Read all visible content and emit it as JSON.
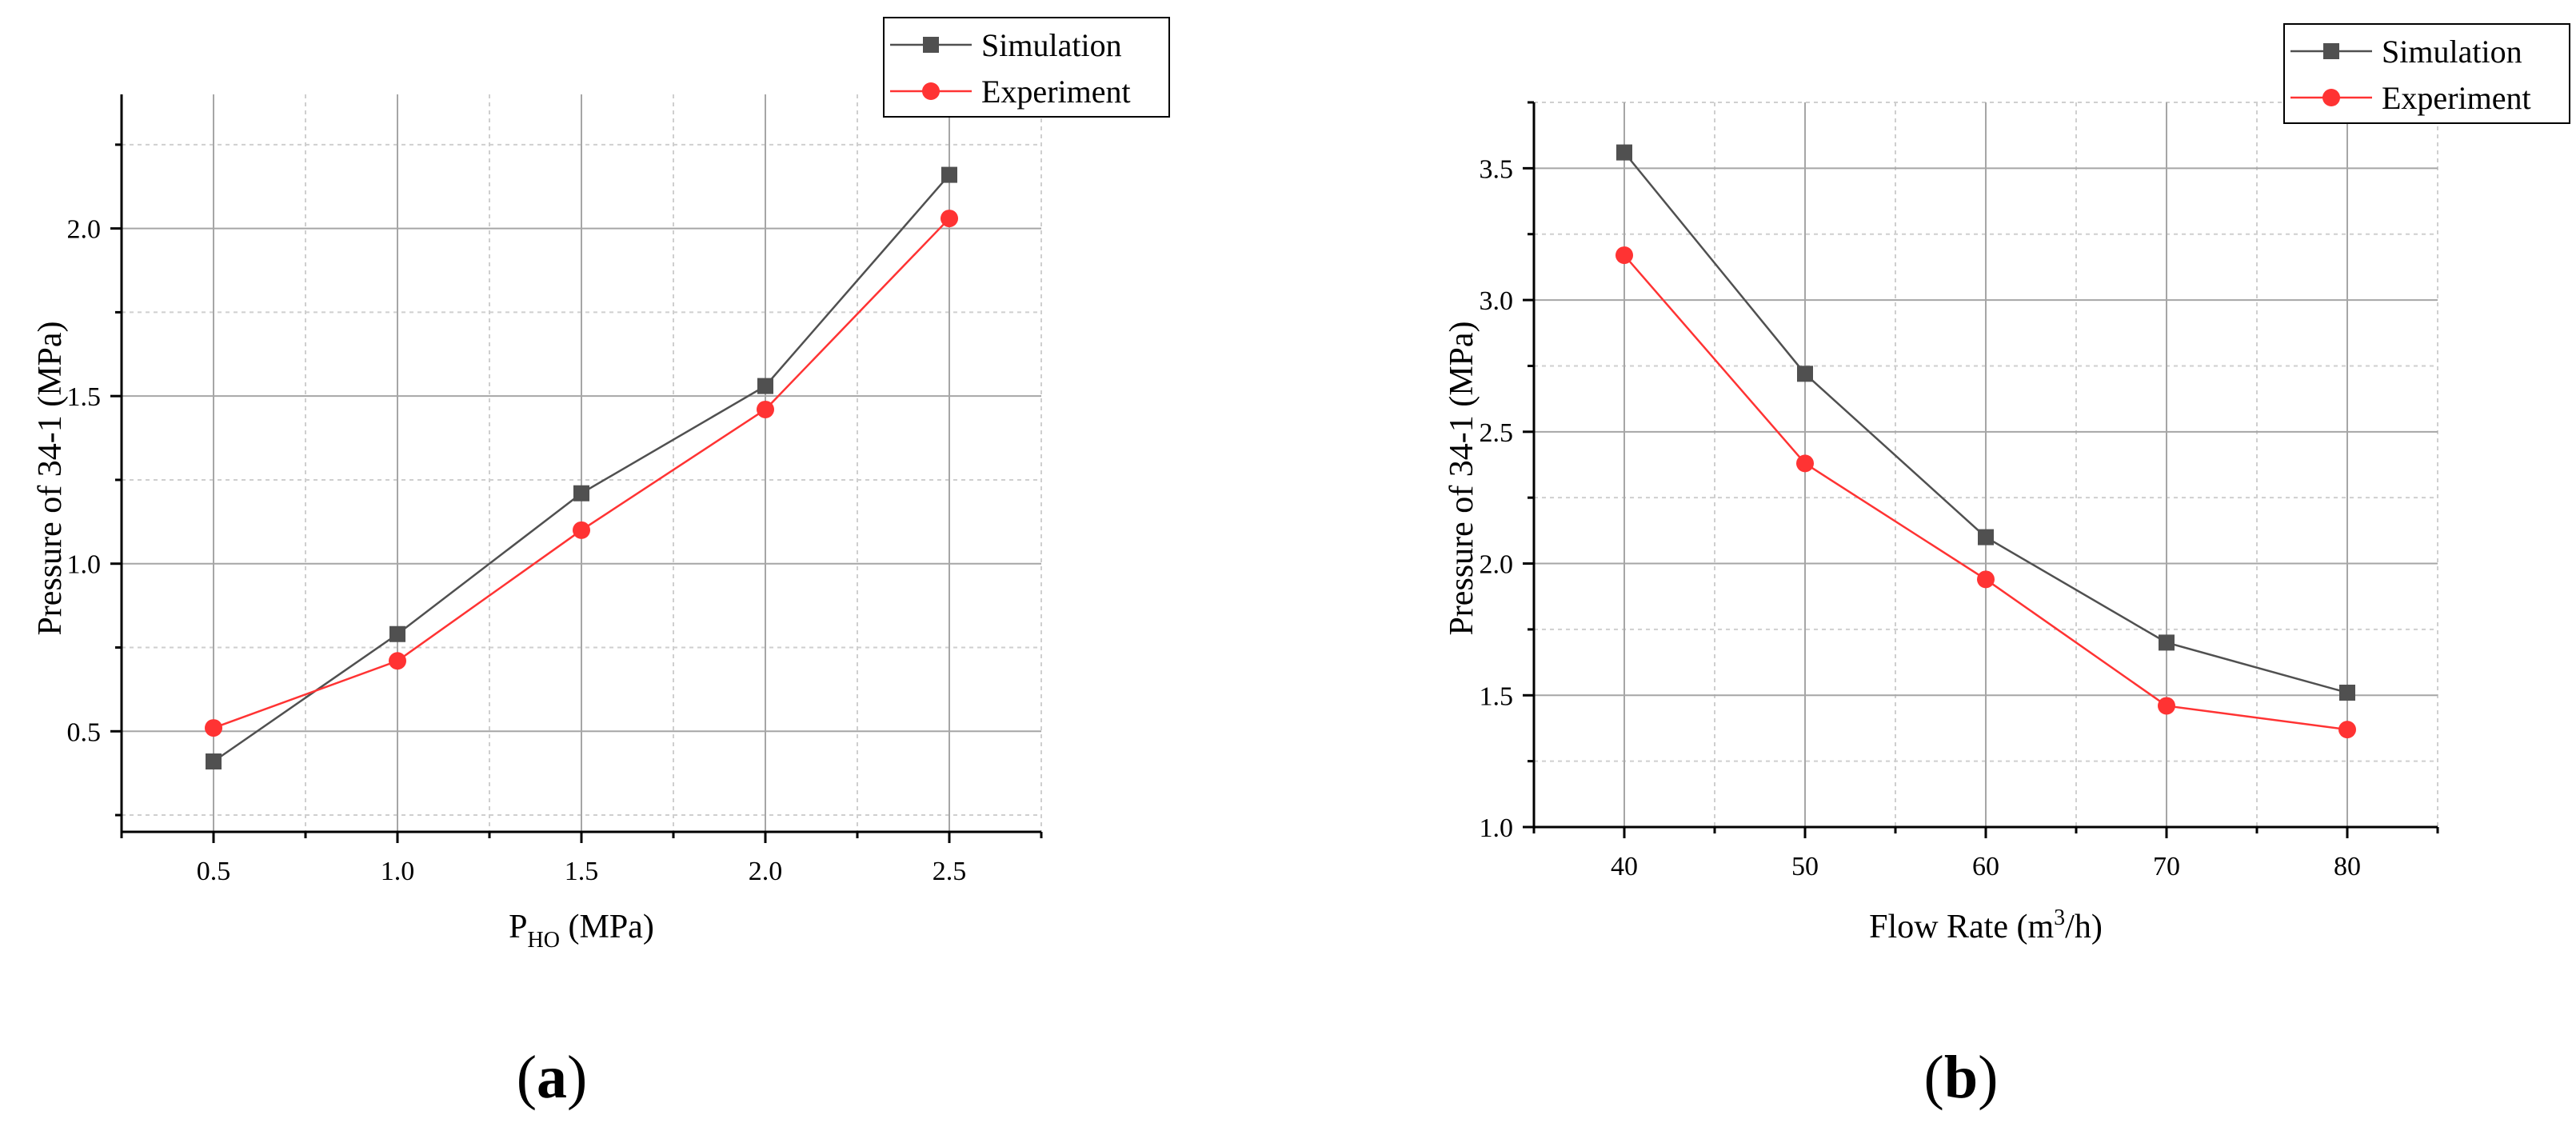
{
  "chart_data": [
    {
      "type": "line",
      "panel_label": "a",
      "xlabel_main": "P",
      "xlabel_sub": "HO",
      "xlabel_tail": " (MPa)",
      "ylabel": "Pressure of 34-1 (MPa)",
      "xlim": [
        0.25,
        2.75
      ],
      "ylim": [
        0.2,
        2.4
      ],
      "xticks": [
        "0.5",
        "1.0",
        "1.5",
        "2.0",
        "2.5"
      ],
      "yticks": [
        "0.5",
        "1.0",
        "1.5",
        "2.0"
      ],
      "x": [
        0.5,
        1.0,
        1.5,
        2.0,
        2.5
      ],
      "grid": true,
      "legend_position": "top-right",
      "series": [
        {
          "name": "Simulation",
          "marker": "square",
          "color": "#505050",
          "values": [
            0.41,
            0.79,
            1.21,
            1.53,
            2.16
          ]
        },
        {
          "name": "Experiment",
          "marker": "circle",
          "color": "#ff3333",
          "values": [
            0.51,
            0.71,
            1.1,
            1.46,
            2.03
          ]
        }
      ]
    },
    {
      "type": "line",
      "panel_label": "b",
      "xlabel_main": "Flow Rate (m",
      "xlabel_sup": "3",
      "xlabel_tail": "/h)",
      "ylabel": "Pressure of 34-1 (MPa)",
      "xlim": [
        35,
        85
      ],
      "ylim": [
        1.0,
        3.75
      ],
      "xticks": [
        "40",
        "50",
        "60",
        "70",
        "80"
      ],
      "yticks": [
        "1.0",
        "1.5",
        "2.0",
        "2.5",
        "3.0",
        "3.5"
      ],
      "x": [
        40,
        50,
        60,
        70,
        80
      ],
      "grid": true,
      "legend_position": "top-right",
      "series": [
        {
          "name": "Simulation",
          "marker": "square",
          "color": "#505050",
          "values": [
            3.56,
            2.72,
            2.1,
            1.7,
            1.51
          ]
        },
        {
          "name": "Experiment",
          "marker": "circle",
          "color": "#ff3333",
          "values": [
            3.17,
            2.38,
            1.94,
            1.46,
            1.37
          ]
        }
      ]
    }
  ]
}
